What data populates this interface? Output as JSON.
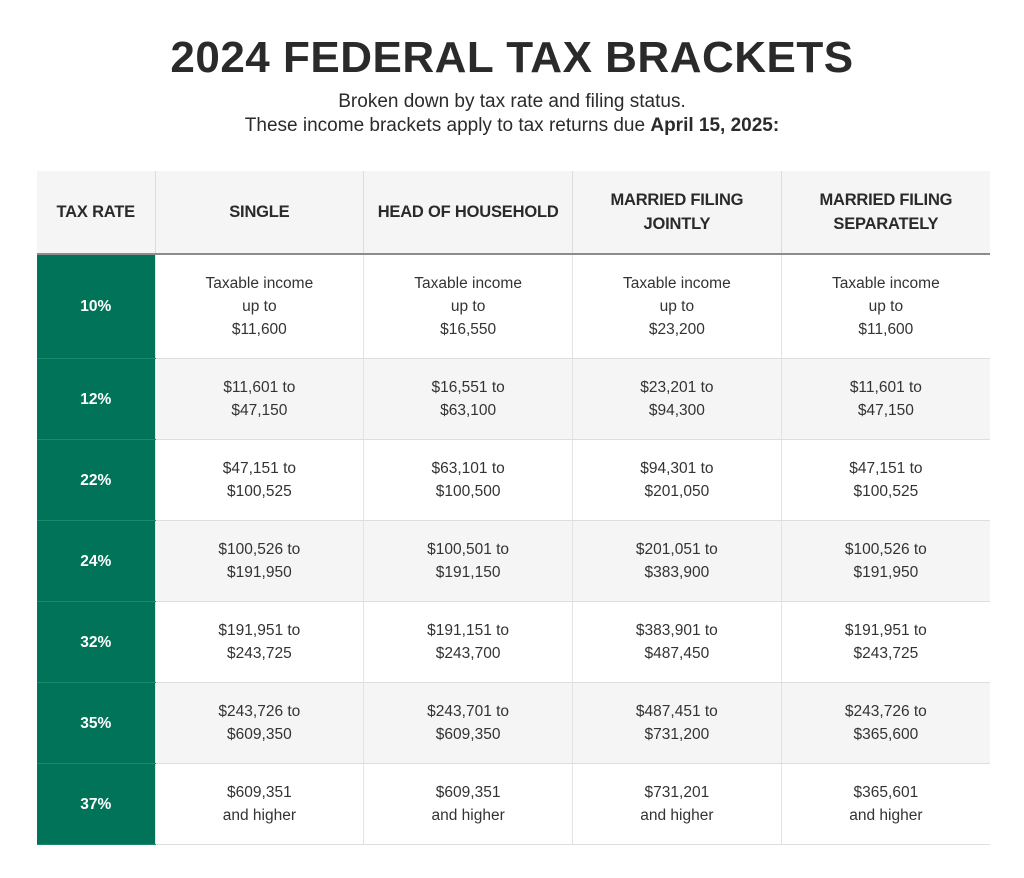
{
  "header": {
    "title": "2024 FEDERAL TAX BRACKETS",
    "subtitle_line1": "Broken down by tax rate and filing status.",
    "subtitle_line2_prefix": "These income brackets apply to tax returns due",
    "subtitle_line2_bold": "April 15, 2025:"
  },
  "table": {
    "columns": [
      "TAX RATE",
      "SINGLE",
      "HEAD OF HOUSEHOLD",
      "MARRIED FILING JOINTLY",
      "MARRIED FILING SEPARATELY"
    ],
    "rows": [
      {
        "rate": "10%",
        "single": [
          "Taxable income",
          "up to",
          "$11,600"
        ],
        "head_of_household": [
          "Taxable income",
          "up to",
          "$16,550"
        ],
        "married_jointly": [
          "Taxable income",
          "up to",
          "$23,200"
        ],
        "married_separately": [
          "Taxable income",
          "up to",
          "$11,600"
        ]
      },
      {
        "rate": "12%",
        "single": [
          "$11,601 to",
          "$47,150"
        ],
        "head_of_household": [
          "$16,551 to",
          "$63,100"
        ],
        "married_jointly": [
          "$23,201 to",
          "$94,300"
        ],
        "married_separately": [
          "$11,601 to",
          "$47,150"
        ]
      },
      {
        "rate": "22%",
        "single": [
          "$47,151 to",
          "$100,525"
        ],
        "head_of_household": [
          "$63,101 to",
          "$100,500"
        ],
        "married_jointly": [
          "$94,301 to",
          "$201,050"
        ],
        "married_separately": [
          "$47,151 to",
          "$100,525"
        ]
      },
      {
        "rate": "24%",
        "single": [
          "$100,526 to",
          "$191,950"
        ],
        "head_of_household": [
          "$100,501 to",
          "$191,150"
        ],
        "married_jointly": [
          "$201,051 to",
          "$383,900"
        ],
        "married_separately": [
          "$100,526 to",
          "$191,950"
        ]
      },
      {
        "rate": "32%",
        "single": [
          "$191,951 to",
          "$243,725"
        ],
        "head_of_household": [
          "$191,151 to",
          "$243,700"
        ],
        "married_jointly": [
          "$383,901 to",
          "$487,450"
        ],
        "married_separately": [
          "$191,951 to",
          "$243,725"
        ]
      },
      {
        "rate": "35%",
        "single": [
          "$243,726 to",
          "$609,350"
        ],
        "head_of_household": [
          "$243,701 to",
          "$609,350"
        ],
        "married_jointly": [
          "$487,451 to",
          "$731,200"
        ],
        "married_separately": [
          "$243,726 to",
          "$365,600"
        ]
      },
      {
        "rate": "37%",
        "single": [
          "$609,351",
          "and higher"
        ],
        "head_of_household": [
          "$609,351",
          "and higher"
        ],
        "married_jointly": [
          "$731,201",
          "and higher"
        ],
        "married_separately": [
          "$365,601",
          "and higher"
        ]
      }
    ]
  },
  "colors": {
    "rate_column": "#007358",
    "header_background": "#f5f5f5",
    "alt_row_background": "#f5f5f5"
  }
}
